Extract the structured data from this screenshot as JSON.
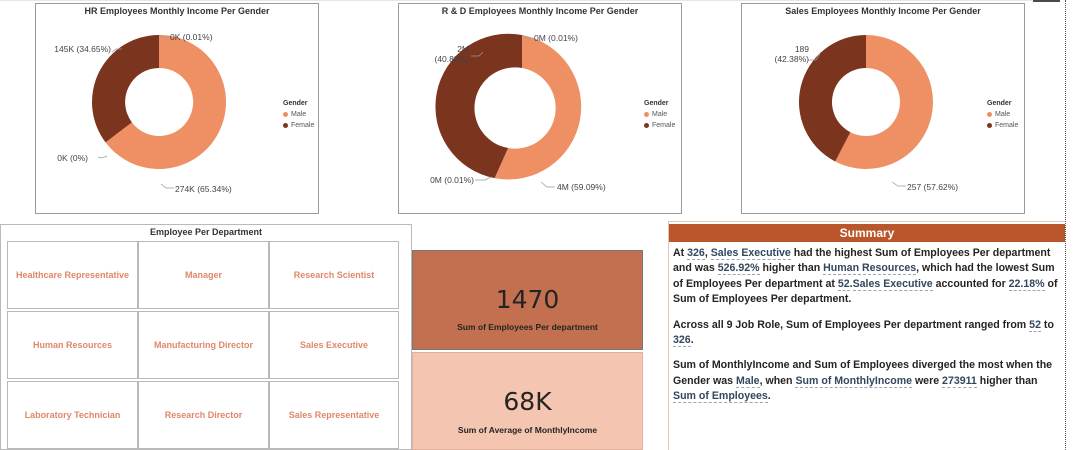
{
  "colors": {
    "male": "#ee9063",
    "female": "#7b341e",
    "kpi_dark": "#c27050",
    "kpi_light": "#f4c6b1",
    "summary_header": "#b9562b",
    "tile_text": "#e0876a"
  },
  "charts": {
    "hr": {
      "title": "HR Employees Monthly Income Per Gender",
      "labels": {
        "zero_top": "0K (0.01%)",
        "female": "145K (34.65%)",
        "zero_left": "0K (0%)",
        "male": "274K (65.34%)"
      }
    },
    "rd": {
      "title": "R & D Employees Monthly Income Per Gender",
      "labels": {
        "zero_top": "0M (0.01%)",
        "female_1": "2M",
        "female_2": "(40.89%)",
        "zero_left": "0M (0.01%)",
        "male": "4M (59.09%)"
      }
    },
    "sales": {
      "title": "Sales Employees Monthly Income Per Gender",
      "labels": {
        "female_1": "189",
        "female_2": "(42.38%)",
        "male": "257 (57.62%)"
      }
    },
    "legend": {
      "title": "Gender",
      "male": "Male",
      "female": "Female"
    }
  },
  "chart_data": [
    {
      "type": "pie",
      "title": "HR Employees Monthly Income Per Gender",
      "legend_title": "Gender",
      "legend_position": "right",
      "slices": [
        {
          "label": "Male",
          "value": 274,
          "percent": 65.34
        },
        {
          "label": "Female",
          "value": 145,
          "percent": 34.65
        },
        {
          "label": "",
          "value": 0,
          "percent": 0.01
        },
        {
          "label": "",
          "value": 0,
          "percent": 0
        }
      ]
    },
    {
      "type": "pie",
      "title": "R & D Employees Monthly Income Per Gender",
      "legend_title": "Gender",
      "legend_position": "right",
      "slices": [
        {
          "label": "Male",
          "value": 4,
          "percent": 59.09
        },
        {
          "label": "Female",
          "value": 2,
          "percent": 40.89
        },
        {
          "label": "",
          "value": 0,
          "percent": 0.01
        },
        {
          "label": "",
          "value": 0,
          "percent": 0.01
        }
      ]
    },
    {
      "type": "pie",
      "title": "Sales Employees Monthly Income Per Gender",
      "legend_title": "Gender",
      "legend_position": "right",
      "slices": [
        {
          "label": "Male",
          "value": 257,
          "percent": 57.62
        },
        {
          "label": "Female",
          "value": 189,
          "percent": 42.38
        }
      ]
    }
  ],
  "departments": {
    "title": "Employee Per Department",
    "tiles": [
      "Healthcare Representative",
      "Manager",
      "Research Scientist",
      "Human Resources",
      "Manufacturing Director",
      "Sales Executive",
      "Laboratory Technician",
      "Research Director",
      "Sales Representative"
    ]
  },
  "kpis": {
    "total": {
      "value": "1470",
      "caption": "Sum of Employees Per department"
    },
    "avg_income": {
      "value": "68K",
      "caption": "Sum of Average of MonthlyIncome"
    }
  },
  "summary": {
    "header": "Summary",
    "p1": [
      "At ",
      "326",
      ", ",
      "Sales Executive",
      " had the highest Sum of Employees Per department and was ",
      "526.92%",
      " higher than ",
      "Human Resources",
      ", which had the lowest Sum of Employees Per department at ",
      "52",
      ".",
      "Sales Executive",
      " accounted for ",
      "22.18%",
      " of Sum of Employees Per department."
    ],
    "p2": [
      "Across all 9 Job Role, Sum of Employees Per department ranged from ",
      "52",
      " to ",
      "326",
      "."
    ],
    "p3": [
      "Sum of  MonthlyIncome and Sum of Employees diverged the most when the Gender was ",
      "Male",
      ", when ",
      "Sum of  MonthlyIncome",
      " were ",
      "273911",
      " higher than ",
      "Sum of Employees",
      "."
    ]
  }
}
